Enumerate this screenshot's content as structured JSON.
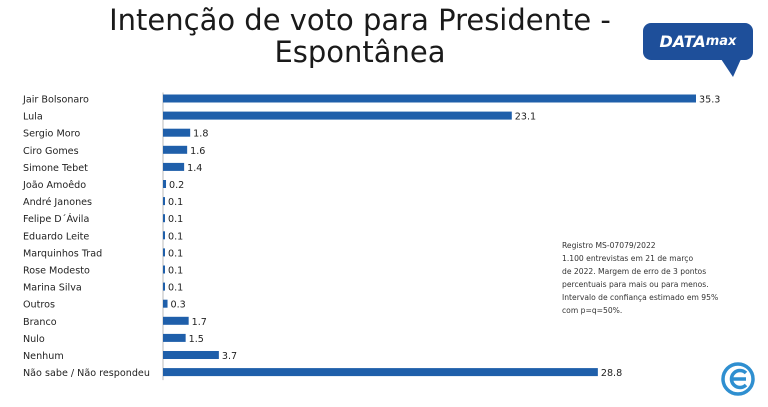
{
  "title_lines": [
    "Intenção de voto para Presidente -",
    "Espontânea"
  ],
  "logo": {
    "main": "DATA",
    "sub": "max"
  },
  "note": {
    "lines": [
      "Registro MS-07079/2022",
      "1.100 entrevistas em 21 de março",
      "de 2022. Margem de erro de 3 pontos",
      "percentuais para mais ou para menos.",
      "Intervalo de confiança estimado em 95%",
      "com p=q=50%."
    ]
  },
  "colors": {
    "bar": "#1f5faa",
    "logo_bg": "#1e4f9a",
    "icon": "#2f8fd0"
  },
  "icons": {
    "corner": "circular-e-icon"
  },
  "chart_data": {
    "type": "bar",
    "orientation": "horizontal",
    "categories": [
      "Jair Bolsonaro",
      "Lula",
      "Sergio Moro",
      "Ciro Gomes",
      "Simone Tebet",
      "João Amoêdo",
      "André Janones",
      "Felipe D´Ávila",
      "Eduardo Leite",
      "Marquinhos Trad",
      "Rose Modesto",
      "Marina Silva",
      "Outros",
      "Branco",
      "Nulo",
      "Nenhum",
      "Não sabe / Não respondeu"
    ],
    "values": [
      35.3,
      23.1,
      1.8,
      1.6,
      1.4,
      0.2,
      0.1,
      0.1,
      0.1,
      0.1,
      0.1,
      0.1,
      0.3,
      1.7,
      1.5,
      3.7,
      28.8
    ],
    "value_labels": [
      "35.3",
      "23.1",
      "1.8",
      "1.6",
      "1.4",
      "0.2",
      "0.1",
      "0.1",
      "0.1",
      "0.1",
      "0.1",
      "0.1",
      "0.3",
      "1.7",
      "1.5",
      "3.7",
      "28.8"
    ],
    "xlim": [
      0,
      35.3
    ],
    "grid": false,
    "legend": "none"
  }
}
